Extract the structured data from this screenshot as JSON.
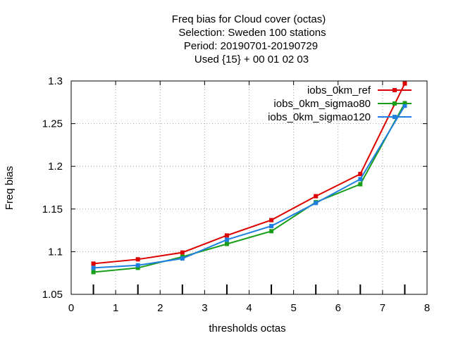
{
  "chart_data": {
    "type": "line",
    "title_lines": [
      "Freq bias  for Cloud cover (octas)",
      "Selection: Sweden    100 stations",
      "Period: 20190701-20190729",
      "Used {15} + 00 01 02 03"
    ],
    "xlabel": "thresholds octas",
    "ylabel": "Freq bias",
    "xlim": [
      0,
      8
    ],
    "ylim": [
      1.05,
      1.3
    ],
    "x_ticks": [
      0,
      1,
      2,
      3,
      4,
      5,
      6,
      7,
      8
    ],
    "y_ticks": [
      1.05,
      1.1,
      1.15,
      1.2,
      1.25,
      1.3
    ],
    "x_tick_labels": [
      "0",
      "1",
      "2",
      "3",
      "4",
      "5",
      "6",
      "7",
      "8"
    ],
    "y_tick_labels": [
      "1.05",
      "1.1",
      "1.15",
      "1.2",
      "1.25",
      "1.3"
    ],
    "grid": true,
    "legend_position": "top-right",
    "rug_x": [
      0.5,
      1.5,
      2.5,
      3.5,
      4.5,
      5.5,
      6.5,
      7.5
    ],
    "series": [
      {
        "name": "iobs_0km_ref",
        "color": "#dd0000",
        "x": [
          0.5,
          1.5,
          2.5,
          3.5,
          4.5,
          5.5,
          6.5,
          7.5
        ],
        "y": [
          1.086,
          1.091,
          1.099,
          1.119,
          1.137,
          1.165,
          1.191,
          1.297
        ]
      },
      {
        "name": "iobs_0km_sigmao80",
        "color": "#1a9e1a",
        "x": [
          0.5,
          1.5,
          2.5,
          3.5,
          4.5,
          5.5,
          6.5,
          7.5
        ],
        "y": [
          1.076,
          1.081,
          1.094,
          1.109,
          1.124,
          1.158,
          1.179,
          1.274
        ]
      },
      {
        "name": "iobs_0km_sigmao120",
        "color": "#1e7fe0",
        "x": [
          0.5,
          1.5,
          2.5,
          3.5,
          4.5,
          5.5,
          6.5,
          7.5
        ],
        "y": [
          1.081,
          1.084,
          1.092,
          1.114,
          1.13,
          1.157,
          1.185,
          1.271
        ]
      }
    ]
  }
}
